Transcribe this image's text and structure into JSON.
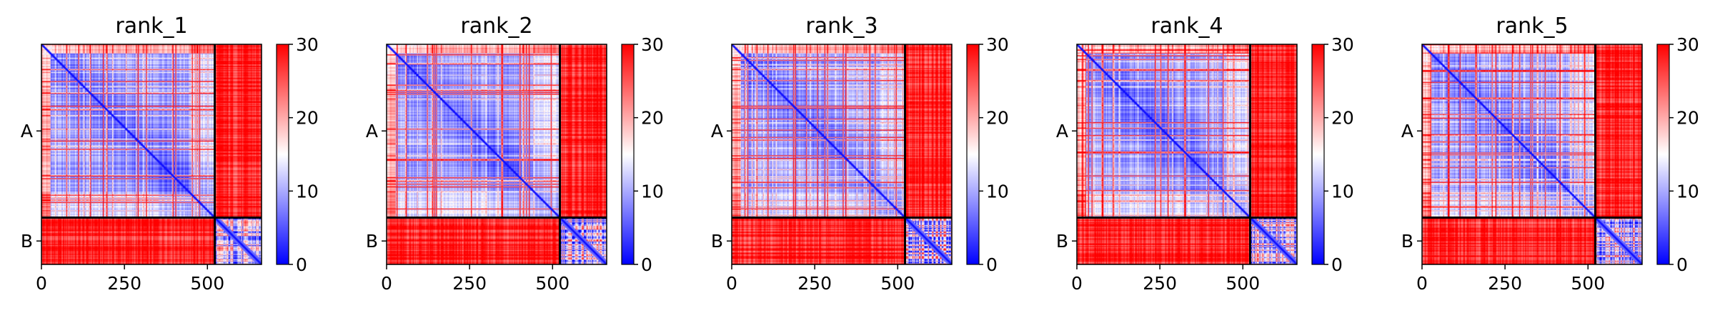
{
  "chart_data": {
    "type": "heatmap",
    "colormap": "bwr",
    "colors": {
      "low": "#0000ff",
      "mid": "#ffffff",
      "high": "#ff0000",
      "frame": "#000000"
    },
    "clim": [
      0,
      30
    ],
    "colorbar_ticks": [
      0,
      10,
      20,
      30
    ],
    "colorbar_tick_labels": [
      "0",
      "10",
      "20",
      "30"
    ],
    "x_ticks": [
      0,
      250,
      500
    ],
    "x_tick_labels": [
      "0",
      "250",
      "500"
    ],
    "chains": [
      {
        "label": "A",
        "start": 0,
        "end": 522
      },
      {
        "label": "B",
        "start": 522,
        "end": 663
      }
    ],
    "axis_range": [
      0,
      663
    ],
    "grid": false,
    "panels": [
      {
        "title": "rank_1"
      },
      {
        "title": "rank_2"
      },
      {
        "title": "rank_3"
      },
      {
        "title": "rank_4"
      },
      {
        "title": "rank_5"
      }
    ]
  }
}
